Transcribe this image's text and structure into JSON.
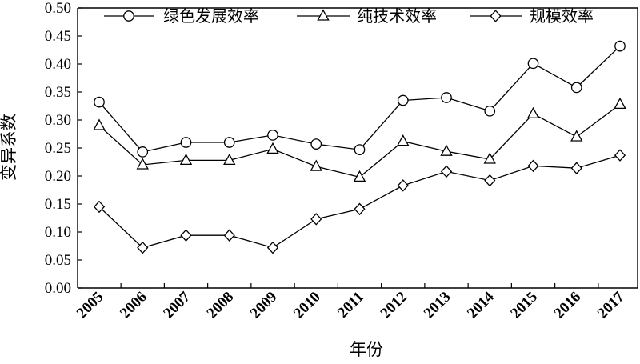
{
  "chart_data": {
    "type": "line",
    "xlabel": "年份",
    "ylabel": "变异系数",
    "ylim": [
      0,
      0.5
    ],
    "y_ticks": [
      "0.00",
      "0.05",
      "0.10",
      "0.15",
      "0.20",
      "0.25",
      "0.30",
      "0.35",
      "0.40",
      "0.45",
      "0.50"
    ],
    "categories": [
      "2005",
      "2006",
      "2007",
      "2008",
      "2009",
      "2010",
      "2011",
      "2012",
      "2013",
      "2014",
      "2015",
      "2016",
      "2017"
    ],
    "grid": false,
    "legend_position": "top",
    "series": [
      {
        "name": "绿色发展效率",
        "marker": "circle",
        "values": [
          0.332,
          0.243,
          0.26,
          0.26,
          0.273,
          0.257,
          0.247,
          0.335,
          0.34,
          0.316,
          0.401,
          0.358,
          0.432
        ]
      },
      {
        "name": "纯技术效率",
        "marker": "triangle",
        "values": [
          0.29,
          0.22,
          0.228,
          0.228,
          0.248,
          0.217,
          0.198,
          0.262,
          0.244,
          0.23,
          0.311,
          0.27,
          0.328
        ]
      },
      {
        "name": "规模效率",
        "marker": "diamond",
        "values": [
          0.145,
          0.072,
          0.094,
          0.094,
          0.072,
          0.123,
          0.141,
          0.183,
          0.208,
          0.192,
          0.218,
          0.214,
          0.237
        ]
      }
    ]
  }
}
